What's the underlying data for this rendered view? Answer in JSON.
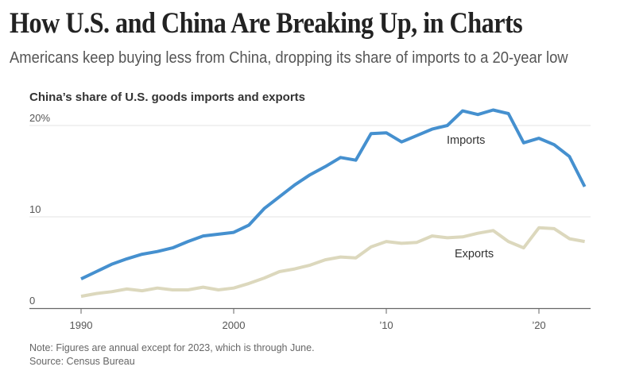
{
  "header": {
    "headline": "How U.S. and China Are Breaking Up, in Charts",
    "dek": "Americans keep buying less from China, dropping its share of imports to a 20-year low"
  },
  "footer": {
    "note": "Note: Figures are annual except for 2023, which is through June.",
    "source": "Source: Census Bureau"
  },
  "colors": {
    "imports": "#4590cf",
    "exports": "#dcd8bd",
    "gridline": "#e3e3e3",
    "axis": "#666666"
  },
  "chart_data": {
    "type": "line",
    "title": "China’s share of U.S. goods imports and exports",
    "xlabel": "",
    "ylabel": "",
    "x": [
      1990,
      1991,
      1992,
      1993,
      1994,
      1995,
      1996,
      1997,
      1998,
      1999,
      2000,
      2001,
      2002,
      2003,
      2004,
      2005,
      2006,
      2007,
      2008,
      2009,
      2010,
      2011,
      2012,
      2013,
      2014,
      2015,
      2016,
      2017,
      2018,
      2019,
      2020,
      2021,
      2022,
      2023
    ],
    "series": [
      {
        "name": "Imports",
        "values": [
          3.2,
          4.0,
          4.8,
          5.4,
          5.9,
          6.2,
          6.6,
          7.3,
          7.9,
          8.1,
          8.3,
          9.1,
          10.9,
          12.2,
          13.5,
          14.6,
          15.5,
          16.5,
          16.2,
          19.1,
          19.2,
          18.2,
          18.9,
          19.6,
          20.0,
          21.6,
          21.2,
          21.7,
          21.3,
          18.1,
          18.6,
          17.9,
          16.6,
          13.3
        ]
      },
      {
        "name": "Exports",
        "values": [
          1.3,
          1.6,
          1.8,
          2.1,
          1.9,
          2.2,
          2.0,
          2.0,
          2.3,
          2.0,
          2.2,
          2.7,
          3.3,
          4.0,
          4.3,
          4.7,
          5.3,
          5.6,
          5.5,
          6.7,
          7.3,
          7.1,
          7.2,
          7.9,
          7.7,
          7.8,
          8.2,
          8.5,
          7.3,
          6.6,
          8.8,
          8.7,
          7.6,
          7.3
        ]
      }
    ],
    "xlim": [
      1989.4,
      2023.3
    ],
    "ylim": [
      0,
      20
    ],
    "yticks": [
      0,
      10,
      20
    ],
    "ytick_labels": [
      "0",
      "10",
      "20%"
    ],
    "xticks": [
      1990,
      2000,
      2010,
      2020
    ],
    "xtick_labels": [
      "1990",
      "2000",
      "’10",
      "’20"
    ],
    "grid": true,
    "legend": "inline labels"
  }
}
